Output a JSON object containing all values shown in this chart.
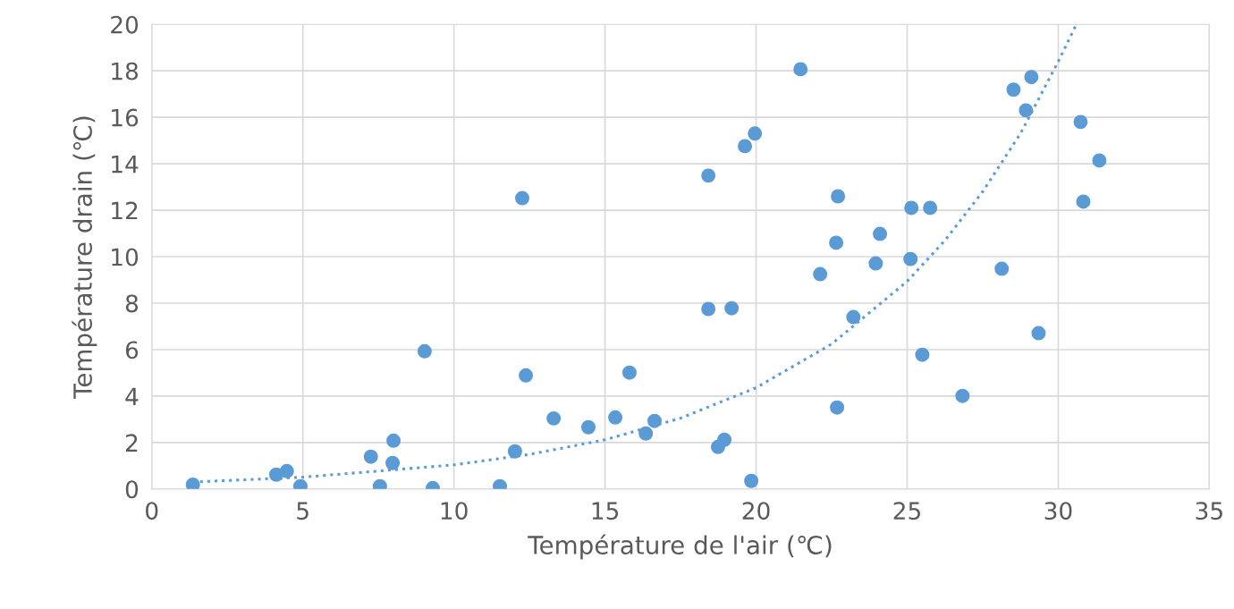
{
  "chart_data": {
    "type": "scatter",
    "xlabel": "Température de l'air (℃)",
    "ylabel": "Température drain (℃)",
    "xlim": [
      0,
      35
    ],
    "xticks": [
      0,
      5,
      10,
      15,
      20,
      25,
      30,
      35
    ],
    "ylim": [
      0,
      20
    ],
    "yticks": [
      0,
      2,
      4,
      6,
      8,
      10,
      12,
      14,
      16,
      18,
      20
    ],
    "grid": true,
    "series": [
      {
        "color": "#5b9bd5",
        "marker": "circle",
        "x": [
          1.36,
          4.12,
          4.47,
          4.92,
          7.25,
          8.0,
          7.97,
          7.55,
          9.03,
          9.3,
          11.52,
          12.02,
          12.26,
          12.38,
          13.3,
          14.45,
          15.34,
          15.81,
          16.35,
          16.64,
          18.42,
          18.42,
          19.19,
          18.74,
          18.95,
          19.63,
          19.96,
          19.84,
          21.47,
          22.12,
          22.71,
          22.65,
          22.68,
          23.22,
          23.96,
          24.1,
          25.14,
          25.11,
          25.5,
          25.76,
          26.83,
          28.13,
          28.52,
          28.93,
          29.11,
          29.35,
          30.74,
          30.83,
          31.36
        ],
        "values": [
          0.19,
          0.62,
          0.77,
          0.12,
          1.39,
          2.08,
          1.12,
          0.12,
          5.93,
          0.04,
          0.12,
          1.62,
          12.52,
          4.89,
          3.04,
          2.66,
          3.08,
          5.01,
          2.39,
          2.93,
          13.49,
          7.75,
          7.78,
          1.81,
          2.12,
          14.76,
          15.3,
          0.35,
          18.07,
          9.25,
          12.6,
          10.6,
          3.51,
          7.4,
          9.71,
          10.98,
          12.1,
          9.9,
          5.78,
          12.1,
          4.01,
          9.48,
          17.19,
          16.3,
          17.73,
          6.71,
          15.8,
          12.37,
          14.14
        ]
      },
      {
        "type": "line",
        "color": "#5b9bd5",
        "line_style": "dotted",
        "marker": "none",
        "x": [
          1.36,
          5,
          10,
          12.5,
          15,
          17.5,
          20,
          22.5,
          25,
          26.25,
          27.5,
          28.75,
          30,
          30.6
        ],
        "values": [
          0.3,
          0.51,
          1.04,
          1.49,
          2.12,
          3.05,
          4.36,
          6.24,
          8.94,
          10.7,
          12.8,
          15.3,
          18.4,
          20.0
        ]
      }
    ]
  }
}
